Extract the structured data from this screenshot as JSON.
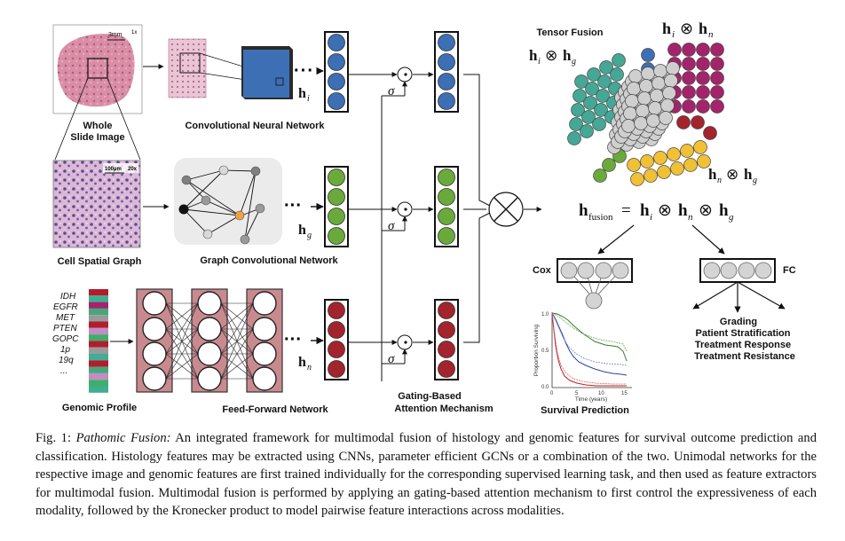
{
  "figure": {
    "histology": {
      "scale_slide": "3mm",
      "zoom_slide": "1x",
      "label_line1": "Whole",
      "label_line2": "Slide Image",
      "scale_patch": "100µm",
      "zoom_patch": "20x",
      "label_graph": "Cell Spatial Graph"
    },
    "networks": {
      "cnn": "Convolutional Neural Network",
      "gcn": "Graph Convolutional Network",
      "ffn": "Feed-Forward Network"
    },
    "genomic": {
      "label": "Genomic Profile",
      "genes": [
        "IDH",
        "EGFR",
        "MET",
        "PTEN",
        "GOPC",
        "1p",
        "19q",
        "..."
      ]
    },
    "symbols": {
      "h": "h",
      "sub_i": "i",
      "sub_g": "g",
      "sub_n": "n",
      "sigma": "σ",
      "dot": "⊙",
      "kron": "⊗",
      "sub_fusion": "fusion",
      "equals": "="
    },
    "gating": {
      "line1": "Gating-Based",
      "line2": "Attention Mechanism"
    },
    "tensor": {
      "title": "Tensor Fusion"
    },
    "heads": {
      "cox": "Cox",
      "fc": "FC",
      "survival": "Survival Prediction",
      "tasks": [
        "Grading",
        "Patient Stratification",
        "Treatment Response",
        "Treatment Resistance"
      ]
    },
    "km_plot": {
      "ylabel": "Proportion Surviving",
      "xlabel": "Time (years)",
      "xticks": [
        "0",
        "5",
        "10",
        "15"
      ],
      "yticks": [
        "0.0",
        "0.5",
        "1.0"
      ]
    }
  },
  "colors": {
    "blue": "#3d6fb5",
    "green": "#6aaa3a",
    "red": "#a3242d",
    "teal": "#45a796",
    "magenta": "#a3246a",
    "yellow": "#f0c035",
    "gray": "#cfcfcf",
    "ffn_fill": "#c98a8f"
  },
  "caption": {
    "label": "Fig. 1:",
    "title": "Pathomic Fusion:",
    "text": "An integrated framework for multimodal fusion of histology and genomic features for survival outcome prediction and classification. Histology features may be extracted using CNNs, parameter efficient GCNs or a combination of the two. Unimodal networks for the respective image and genomic features are first trained individually for the corresponding supervised learning task, and then used as feature extractors for multimodal fusion. Multimodal fusion is performed by applying an gating-based attention mechanism to first control the expressiveness of each modality, followed by the Kronecker product to model pairwise feature interactions across modalities."
  }
}
